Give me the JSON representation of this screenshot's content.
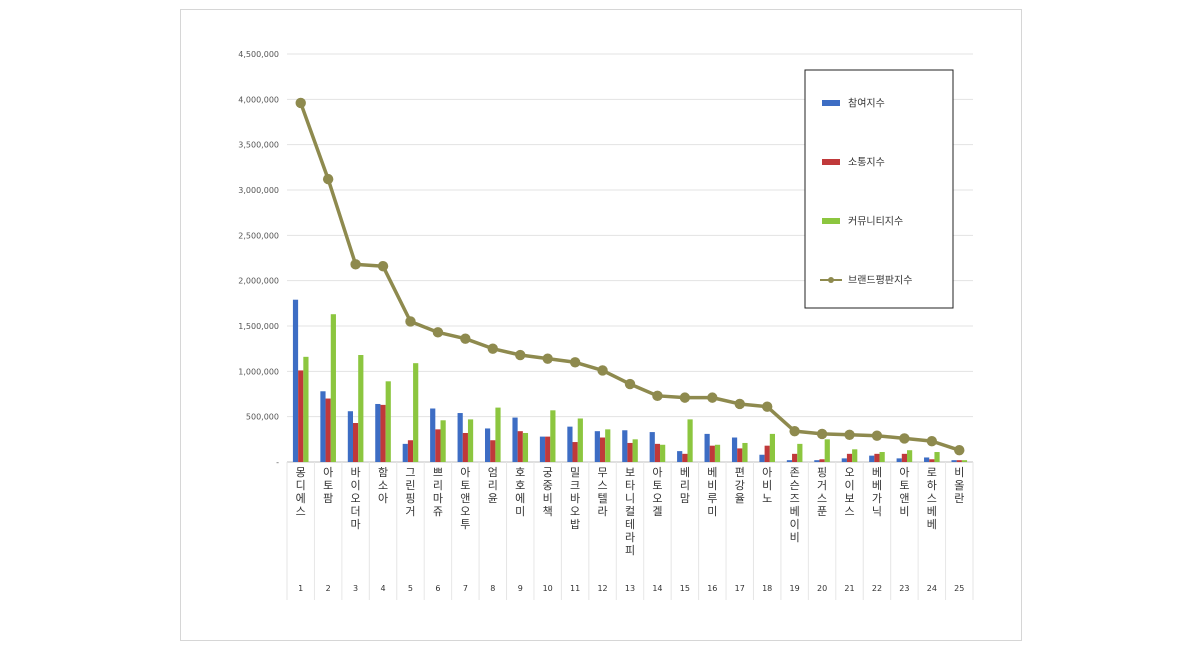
{
  "chart_data": {
    "type": "bar",
    "categories": [
      "1",
      "2",
      "3",
      "4",
      "5",
      "6",
      "7",
      "8",
      "9",
      "10",
      "11",
      "12",
      "13",
      "14",
      "15",
      "16",
      "17",
      "18",
      "19",
      "20",
      "21",
      "22",
      "23",
      "24",
      "25"
    ],
    "brands": [
      "몽디에스",
      "아토팜",
      "바이오더마",
      "함소아",
      "그린핑거",
      "쁘리마쥬",
      "아토앤오투",
      "엄리윤",
      "호호에미",
      "궁중비책",
      "밀크바오밥",
      "무스텔라",
      "보타니컬테라피",
      "아토오겔",
      "베리맘",
      "베비루미",
      "편강율",
      "아비노",
      "존슨즈베이비",
      "핑거스푼",
      "오이보스",
      "베베가닉",
      "아토앤비",
      "로하스베베",
      "비올란"
    ],
    "series": [
      {
        "name": "참여지수",
        "type": "bar",
        "color": "#3d6dc4",
        "values": [
          1790000,
          780000,
          560000,
          640000,
          200000,
          590000,
          540000,
          370000,
          490000,
          280000,
          390000,
          340000,
          350000,
          330000,
          120000,
          310000,
          270000,
          80000,
          20000,
          20000,
          40000,
          70000,
          40000,
          50000,
          20000
        ]
      },
      {
        "name": "소통지수",
        "type": "bar",
        "color": "#c0393a",
        "values": [
          1010000,
          700000,
          430000,
          630000,
          240000,
          360000,
          320000,
          240000,
          340000,
          280000,
          220000,
          270000,
          210000,
          200000,
          90000,
          180000,
          150000,
          180000,
          90000,
          30000,
          90000,
          90000,
          90000,
          30000,
          20000
        ]
      },
      {
        "name": "커뮤니티지수",
        "type": "bar",
        "color": "#8cc63f",
        "values": [
          1160000,
          1630000,
          1180000,
          890000,
          1090000,
          460000,
          470000,
          600000,
          320000,
          570000,
          480000,
          360000,
          250000,
          190000,
          470000,
          190000,
          210000,
          310000,
          200000,
          250000,
          140000,
          110000,
          130000,
          110000,
          20000
        ]
      },
      {
        "name": "브랜드평판지수",
        "type": "line",
        "color": "#8e8a4e",
        "values": [
          3960000,
          3120000,
          2180000,
          2160000,
          1550000,
          1430000,
          1360000,
          1250000,
          1180000,
          1140000,
          1100000,
          1010000,
          860000,
          730000,
          710000,
          710000,
          640000,
          610000,
          340000,
          310000,
          300000,
          290000,
          260000,
          230000,
          130000
        ]
      }
    ],
    "yticks": [
      "-",
      "500,000",
      "1,000,000",
      "1,500,000",
      "2,000,000",
      "2,500,000",
      "3,000,000",
      "3,500,000",
      "4,000,000",
      "4,500,000"
    ],
    "ylim": [
      0,
      4500000
    ],
    "grid": true,
    "legend": "top-right"
  }
}
